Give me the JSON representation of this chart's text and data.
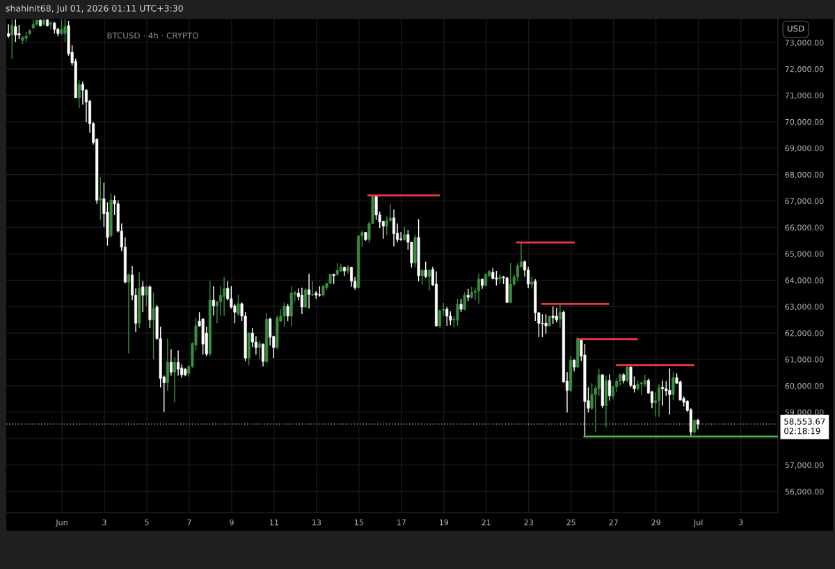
{
  "chart_data": {
    "type": "candlestick",
    "title": "BTCUSD · 4h · CRYPTO",
    "ylabel": "USD",
    "annotations": [
      "shahinit68, Jul 01, 2026 01:11 UTC+3:30"
    ],
    "x": [
      "2026-05-29T11:30",
      "2026-05-29T15:30",
      "2026-05-29T19:30",
      "2026-05-29T23:30",
      "2026-05-30T03:30",
      "2026-05-30T07:30",
      "2026-05-30T11:30",
      "2026-05-30T15:30",
      "2026-05-30T19:30",
      "2026-05-30T23:30",
      "2026-05-31T03:30",
      "2026-05-31T07:30",
      "2026-05-31T11:30",
      "2026-05-31T15:30",
      "2026-05-31T19:30",
      "2026-05-31T23:30",
      "2026-06-01T03:30",
      "2026-06-01T07:30",
      "2026-06-01T11:30",
      "2026-06-01T15:30",
      "2026-06-01T19:30",
      "2026-06-01T23:30",
      "2026-06-02T03:30",
      "2026-06-02T07:30",
      "2026-06-02T11:30",
      "2026-06-02T15:30",
      "2026-06-02T19:30",
      "2026-06-02T23:30",
      "2026-06-03T03:30",
      "2026-06-03T07:30",
      "2026-06-03T11:30",
      "2026-06-03T15:30",
      "2026-06-03T19:30",
      "2026-06-03T23:30",
      "2026-06-04T03:30",
      "2026-06-04T07:30",
      "2026-06-04T11:30",
      "2026-06-04T15:30",
      "2026-06-04T19:30",
      "2026-06-04T23:30",
      "2026-06-05T03:30",
      "2026-06-05T07:30",
      "2026-06-05T11:30",
      "2026-06-05T15:30",
      "2026-06-05T19:30",
      "2026-06-05T23:30",
      "2026-06-06T03:30",
      "2026-06-06T07:30",
      "2026-06-06T11:30",
      "2026-06-06T15:30",
      "2026-06-06T19:30",
      "2026-06-06T23:30",
      "2026-06-07T03:30",
      "2026-06-07T07:30",
      "2026-06-07T11:30",
      "2026-06-07T15:30",
      "2026-06-07T19:30",
      "2026-06-07T23:30",
      "2026-06-08T03:30",
      "2026-06-08T07:30",
      "2026-06-08T11:30",
      "2026-06-08T15:30",
      "2026-06-08T19:30",
      "2026-06-08T23:30",
      "2026-06-09T03:30",
      "2026-06-09T07:30",
      "2026-06-09T11:30",
      "2026-06-09T15:30",
      "2026-06-09T19:30",
      "2026-06-09T23:30",
      "2026-06-10T03:30",
      "2026-06-10T07:30",
      "2026-06-10T11:30",
      "2026-06-10T15:30",
      "2026-06-10T19:30",
      "2026-06-10T23:30",
      "2026-06-11T03:30",
      "2026-06-11T07:30",
      "2026-06-11T11:30",
      "2026-06-11T15:30",
      "2026-06-11T19:30",
      "2026-06-11T23:30",
      "2026-06-12T03:30",
      "2026-06-12T07:30",
      "2026-06-12T11:30",
      "2026-06-12T15:30",
      "2026-06-12T19:30",
      "2026-06-12T23:30",
      "2026-06-13T03:30",
      "2026-06-13T07:30",
      "2026-06-13T11:30",
      "2026-06-13T15:30",
      "2026-06-13T19:30",
      "2026-06-13T23:30",
      "2026-06-14T03:30",
      "2026-06-14T07:30",
      "2026-06-14T11:30",
      "2026-06-14T15:30",
      "2026-06-14T19:30",
      "2026-06-14T23:30",
      "2026-06-15T03:30",
      "2026-06-15T07:30",
      "2026-06-15T11:30",
      "2026-06-15T15:30",
      "2026-06-15T19:30",
      "2026-06-15T23:30",
      "2026-06-16T03:30",
      "2026-06-16T07:30",
      "2026-06-16T11:30",
      "2026-06-16T15:30",
      "2026-06-16T19:30",
      "2026-06-16T23:30",
      "2026-06-17T03:30",
      "2026-06-17T07:30",
      "2026-06-17T11:30",
      "2026-06-17T15:30",
      "2026-06-17T19:30",
      "2026-06-17T23:30",
      "2026-06-18T03:30",
      "2026-06-18T07:30",
      "2026-06-18T11:30",
      "2026-06-18T15:30",
      "2026-06-18T19:30",
      "2026-06-18T23:30",
      "2026-06-19T03:30",
      "2026-06-19T07:30",
      "2026-06-19T11:30",
      "2026-06-19T15:30",
      "2026-06-19T19:30",
      "2026-06-19T23:30",
      "2026-06-20T03:30",
      "2026-06-20T07:30",
      "2026-06-20T11:30",
      "2026-06-20T15:30",
      "2026-06-20T19:30",
      "2026-06-20T23:30",
      "2026-06-21T03:30",
      "2026-06-21T07:30",
      "2026-06-21T11:30",
      "2026-06-21T15:30",
      "2026-06-21T19:30",
      "2026-06-21T23:30",
      "2026-06-22T03:30",
      "2026-06-22T07:30",
      "2026-06-22T11:30",
      "2026-06-22T15:30",
      "2026-06-22T19:30",
      "2026-06-22T23:30",
      "2026-06-23T03:30",
      "2026-06-23T07:30",
      "2026-06-23T11:30",
      "2026-06-23T15:30",
      "2026-06-23T19:30",
      "2026-06-23T23:30",
      "2026-06-24T03:30",
      "2026-06-24T07:30",
      "2026-06-24T11:30",
      "2026-06-24T15:30",
      "2026-06-24T19:30",
      "2026-06-24T23:30",
      "2026-06-25T03:30",
      "2026-06-25T07:30",
      "2026-06-25T11:30",
      "2026-06-25T15:30",
      "2026-06-25T19:30",
      "2026-06-25T23:30",
      "2026-06-26T03:30",
      "2026-06-26T07:30",
      "2026-06-26T11:30",
      "2026-06-26T15:30",
      "2026-06-26T19:30",
      "2026-06-26T23:30",
      "2026-06-27T03:30",
      "2026-06-27T07:30",
      "2026-06-27T11:30",
      "2026-06-27T15:30",
      "2026-06-27T19:30",
      "2026-06-27T23:30",
      "2026-06-28T03:30",
      "2026-06-28T07:30",
      "2026-06-28T11:30",
      "2026-06-28T15:30",
      "2026-06-28T19:30",
      "2026-06-28T23:30",
      "2026-06-29T03:30",
      "2026-06-29T07:30",
      "2026-06-29T11:30",
      "2026-06-29T15:30",
      "2026-06-29T19:30",
      "2026-06-29T23:30",
      "2026-06-30T03:30",
      "2026-06-30T07:30",
      "2026-06-30T11:30",
      "2026-06-30T15:30",
      "2026-06-30T19:30",
      "2026-06-30T23:30"
    ],
    "ohlc": [
      [
        73340,
        73690,
        73190,
        73240
      ],
      [
        73290,
        73880,
        72370,
        73660
      ],
      [
        73610,
        73880,
        73030,
        73290
      ],
      [
        73340,
        73660,
        73130,
        73290
      ],
      [
        73080,
        73240,
        72950,
        73190
      ],
      [
        73160,
        73400,
        73030,
        73240
      ],
      [
        73340,
        73500,
        73290,
        73450
      ],
      [
        73560,
        73880,
        73500,
        73690
      ],
      [
        73690,
        73880,
        73640,
        73850
      ],
      [
        73850,
        73870,
        73610,
        73640
      ],
      [
        73690,
        73880,
        73640,
        73860
      ],
      [
        73860,
        73880,
        73610,
        73640
      ],
      [
        73690,
        73820,
        73500,
        73740
      ],
      [
        73740,
        73790,
        73340,
        73500
      ],
      [
        73500,
        73560,
        73240,
        73340
      ],
      [
        73340,
        73880,
        73290,
        73500
      ],
      [
        73340,
        73880,
        73030,
        73610
      ],
      [
        73640,
        73820,
        72500,
        72580
      ],
      [
        72630,
        72900,
        72130,
        72230
      ],
      [
        72290,
        72390,
        70890,
        70910
      ],
      [
        70910,
        71570,
        70520,
        71410
      ],
      [
        71410,
        71520,
        70650,
        71200
      ],
      [
        71200,
        71230,
        69990,
        70750
      ],
      [
        70780,
        70830,
        69590,
        69930
      ],
      [
        69930,
        69990,
        69140,
        69220
      ],
      [
        69330,
        69380,
        66890,
        67030
      ],
      [
        67030,
        67900,
        66280,
        67100
      ],
      [
        67080,
        67690,
        66020,
        66520
      ],
      [
        66580,
        66950,
        65310,
        65620
      ],
      [
        65680,
        67290,
        65620,
        67030
      ],
      [
        67030,
        67210,
        66470,
        66890
      ],
      [
        66890,
        67030,
        65810,
        65860
      ],
      [
        65860,
        66150,
        65100,
        65250
      ],
      [
        65250,
        65620,
        63880,
        63930
      ],
      [
        63930,
        64250,
        61230,
        64200
      ],
      [
        64200,
        64540,
        63240,
        63430
      ],
      [
        63430,
        63690,
        62030,
        62370
      ],
      [
        62370,
        64300,
        62190,
        63690
      ],
      [
        63750,
        63960,
        62790,
        63430
      ],
      [
        63430,
        63800,
        63030,
        63750
      ],
      [
        63750,
        63800,
        62190,
        62500
      ],
      [
        62500,
        63540,
        61000,
        62930
      ],
      [
        62980,
        63060,
        61740,
        61790
      ],
      [
        61790,
        62240,
        59940,
        60280
      ],
      [
        60340,
        60390,
        59010,
        60120
      ],
      [
        60120,
        61790,
        59810,
        60890
      ],
      [
        60890,
        61390,
        60390,
        60520
      ],
      [
        60520,
        61080,
        59380,
        60890
      ],
      [
        60890,
        61340,
        60390,
        60630
      ],
      [
        60680,
        60810,
        60310,
        60420
      ],
      [
        60630,
        60680,
        60360,
        60420
      ],
      [
        60470,
        60790,
        60340,
        60730
      ],
      [
        60730,
        61650,
        60680,
        61600
      ],
      [
        61550,
        62560,
        61340,
        62270
      ],
      [
        62450,
        62790,
        62240,
        62270
      ],
      [
        62530,
        62560,
        61180,
        61580
      ],
      [
        62000,
        62240,
        61130,
        61210
      ],
      [
        61210,
        63980,
        61130,
        63240
      ],
      [
        63240,
        63770,
        62660,
        63030
      ],
      [
        63030,
        63220,
        62370,
        63190
      ],
      [
        63190,
        63770,
        62660,
        63430
      ],
      [
        63380,
        64120,
        62660,
        63690
      ],
      [
        63690,
        63960,
        63240,
        63300
      ],
      [
        63300,
        63770,
        62930,
        62980
      ],
      [
        63030,
        63110,
        62370,
        62790
      ],
      [
        62710,
        63450,
        62660,
        63110
      ],
      [
        63110,
        63160,
        62450,
        62640
      ],
      [
        62640,
        62790,
        60940,
        61050
      ],
      [
        61050,
        62030,
        60780,
        62000
      ],
      [
        62000,
        62190,
        61470,
        61660
      ],
      [
        61660,
        61870,
        61180,
        61450
      ],
      [
        61450,
        61710,
        61000,
        61600
      ],
      [
        61580,
        61600,
        60730,
        60920
      ],
      [
        60920,
        62770,
        60860,
        62530
      ],
      [
        62530,
        62580,
        61530,
        61840
      ],
      [
        61870,
        61900,
        61050,
        61450
      ],
      [
        61450,
        62660,
        61390,
        62580
      ],
      [
        62450,
        62900,
        62430,
        62640
      ],
      [
        62640,
        63160,
        62240,
        63030
      ],
      [
        63010,
        63110,
        62450,
        62640
      ],
      [
        62640,
        63770,
        62270,
        63510
      ],
      [
        63460,
        63590,
        63190,
        63540
      ],
      [
        63510,
        63690,
        63240,
        63380
      ],
      [
        63430,
        63720,
        62720,
        62980
      ],
      [
        62980,
        63690,
        62950,
        63640
      ],
      [
        63640,
        64250,
        62930,
        63460
      ],
      [
        63430,
        63960,
        63400,
        63460
      ],
      [
        63510,
        63590,
        63300,
        63430
      ],
      [
        63460,
        63770,
        63380,
        63430
      ],
      [
        63430,
        63830,
        63380,
        63770
      ],
      [
        63720,
        63900,
        63640,
        63880
      ],
      [
        63880,
        64250,
        63850,
        64220
      ],
      [
        64220,
        64250,
        63850,
        64170
      ],
      [
        64220,
        64650,
        64170,
        64380
      ],
      [
        64350,
        64620,
        64300,
        64490
      ],
      [
        64490,
        64510,
        64170,
        64350
      ],
      [
        64350,
        64570,
        64250,
        64490
      ],
      [
        64490,
        64510,
        63750,
        63960
      ],
      [
        63960,
        64120,
        63640,
        63720
      ],
      [
        63720,
        65700,
        63700,
        65680
      ],
      [
        65680,
        65890,
        65280,
        65810
      ],
      [
        65810,
        65830,
        65490,
        65540
      ],
      [
        65540,
        66230,
        65410,
        66150
      ],
      [
        66150,
        67180,
        66120,
        67160
      ],
      [
        67160,
        67210,
        66280,
        66470
      ],
      [
        66470,
        66600,
        65980,
        66200
      ],
      [
        66230,
        66260,
        65570,
        66050
      ],
      [
        66050,
        66420,
        65700,
        66260
      ],
      [
        66260,
        66890,
        66200,
        66360
      ],
      [
        66360,
        66680,
        65280,
        65760
      ],
      [
        65780,
        66150,
        65440,
        65540
      ],
      [
        65570,
        65830,
        65490,
        65540
      ],
      [
        65540,
        66020,
        65490,
        65730
      ],
      [
        65730,
        65910,
        65150,
        65440
      ],
      [
        65440,
        65460,
        64480,
        64650
      ],
      [
        64650,
        65730,
        64480,
        65620
      ],
      [
        65620,
        66310,
        63960,
        64170
      ],
      [
        64170,
        64400,
        63830,
        64380
      ],
      [
        64380,
        64700,
        64090,
        64140
      ],
      [
        64140,
        64400,
        63610,
        64380
      ],
      [
        64410,
        64510,
        63770,
        63830
      ],
      [
        63850,
        64330,
        62240,
        62270
      ],
      [
        62270,
        62900,
        62190,
        62850
      ],
      [
        62850,
        63140,
        62640,
        62900
      ],
      [
        62900,
        62980,
        62270,
        62640
      ],
      [
        62640,
        62820,
        62290,
        62480
      ],
      [
        62500,
        62640,
        62210,
        62530
      ],
      [
        62480,
        63300,
        62270,
        63090
      ],
      [
        63090,
        63300,
        62790,
        62900
      ],
      [
        62900,
        63540,
        62870,
        63430
      ],
      [
        63430,
        63670,
        63220,
        63350
      ],
      [
        63350,
        63750,
        63300,
        63540
      ],
      [
        63540,
        63720,
        63240,
        63590
      ],
      [
        63590,
        64250,
        63110,
        64040
      ],
      [
        64040,
        64060,
        63670,
        63800
      ],
      [
        63800,
        64250,
        63750,
        64220
      ],
      [
        64170,
        64380,
        64120,
        64330
      ],
      [
        64300,
        64460,
        64040,
        64060
      ],
      [
        64090,
        64350,
        63800,
        64040
      ],
      [
        64040,
        64220,
        63850,
        64120
      ],
      [
        64120,
        64170,
        63850,
        64090
      ],
      [
        64090,
        64120,
        63140,
        63160
      ],
      [
        63160,
        64650,
        63140,
        63850
      ],
      [
        63850,
        64220,
        63770,
        64120
      ],
      [
        64120,
        64650,
        63960,
        64540
      ],
      [
        64510,
        65460,
        64480,
        64700
      ],
      [
        64700,
        64750,
        64140,
        64380
      ],
      [
        64380,
        64510,
        63690,
        63850
      ],
      [
        63850,
        64140,
        63690,
        63930
      ],
      [
        63960,
        64040,
        62450,
        62770
      ],
      [
        62770,
        62790,
        61840,
        62370
      ],
      [
        62370,
        62710,
        61840,
        62350
      ],
      [
        62370,
        62710,
        61970,
        62270
      ],
      [
        62270,
        62660,
        62240,
        62640
      ],
      [
        62640,
        63010,
        62350,
        62580
      ],
      [
        62640,
        62960,
        62400,
        62500
      ],
      [
        62530,
        63060,
        62210,
        62790
      ],
      [
        62790,
        62850,
        60120,
        60150
      ],
      [
        60180,
        60520,
        58990,
        59830
      ],
      [
        59830,
        61130,
        59750,
        60970
      ],
      [
        60970,
        61000,
        60550,
        60710
      ],
      [
        60710,
        61840,
        60680,
        61790
      ],
      [
        61760,
        61790,
        60940,
        61130
      ],
      [
        61160,
        61580,
        58080,
        59410
      ],
      [
        59440,
        59940,
        58990,
        59150
      ],
      [
        59150,
        60100,
        59090,
        59670
      ],
      [
        59670,
        59990,
        58250,
        59910
      ],
      [
        59890,
        60650,
        59620,
        60420
      ],
      [
        60420,
        60440,
        59150,
        59250
      ],
      [
        59250,
        60390,
        58430,
        60200
      ],
      [
        60200,
        60440,
        59440,
        59620
      ],
      [
        59620,
        60000,
        59490,
        59970
      ],
      [
        59970,
        60280,
        59780,
        60180
      ],
      [
        60180,
        60470,
        60020,
        60420
      ],
      [
        60420,
        60470,
        60100,
        60200
      ],
      [
        60200,
        60810,
        60120,
        60710
      ],
      [
        60710,
        60730,
        59940,
        60020
      ],
      [
        60020,
        60360,
        59750,
        59890
      ],
      [
        59890,
        60200,
        59830,
        60070
      ],
      [
        60070,
        60150,
        59650,
        60120
      ],
      [
        60070,
        60420,
        59970,
        60200
      ],
      [
        60200,
        60280,
        59700,
        59730
      ],
      [
        59780,
        59800,
        59150,
        59360
      ],
      [
        59360,
        59750,
        58830,
        59440
      ],
      [
        59440,
        60070,
        58830,
        59940
      ],
      [
        59940,
        60200,
        59250,
        59890
      ],
      [
        59890,
        60180,
        59620,
        59810
      ],
      [
        59830,
        60650,
        58910,
        59670
      ],
      [
        59670,
        60520,
        59460,
        60310
      ],
      [
        60310,
        60470,
        60080,
        60100
      ],
      [
        60150,
        60200,
        59440,
        59460
      ],
      [
        59520,
        59600,
        59220,
        59380
      ],
      [
        59410,
        59460,
        59010,
        59070
      ],
      [
        59090,
        59150,
        58110,
        58250
      ],
      [
        58250,
        58720,
        58140,
        58700
      ],
      [
        58700,
        58750,
        58360,
        58553.67
      ]
    ],
    "colors": [
      "#ffffff",
      "#3a8f3e",
      "#ffffff",
      "#ffffff",
      "#3a8f3e",
      "#3a8f3e",
      "#3a8f3e",
      "#3a8f3e",
      "#3a8f3e",
      "#ffffff",
      "#3a8f3e",
      "#ffffff",
      "#3a8f3e",
      "#ffffff",
      "#ffffff",
      "#3a8f3e",
      "#3a8f3e",
      "#ffffff",
      "#ffffff",
      "#ffffff",
      "#3a8f3e",
      "#ffffff",
      "#ffffff",
      "#ffffff",
      "#ffffff",
      "#ffffff",
      "#3a8f3e",
      "#ffffff",
      "#ffffff",
      "#3a8f3e",
      "#ffffff",
      "#ffffff",
      "#ffffff",
      "#ffffff",
      "#3a8f3e",
      "#ffffff",
      "#ffffff",
      "#3a8f3e",
      "#ffffff",
      "#3a8f3e",
      "#ffffff",
      "#3a8f3e",
      "#ffffff",
      "#ffffff",
      "#ffffff",
      "#3a8f3e",
      "#ffffff",
      "#3a8f3e",
      "#ffffff",
      "#ffffff",
      "#ffffff",
      "#3a8f3e",
      "#3a8f3e",
      "#3a8f3e",
      "#ffffff",
      "#ffffff",
      "#ffffff",
      "#3a8f3e",
      "#ffffff",
      "#3a8f3e",
      "#3a8f3e",
      "#3a8f3e",
      "#ffffff",
      "#ffffff",
      "#ffffff",
      "#3a8f3e",
      "#ffffff",
      "#ffffff",
      "#3a8f3e",
      "#ffffff",
      "#ffffff",
      "#3a8f3e",
      "#ffffff",
      "#3a8f3e",
      "#ffffff",
      "#ffffff",
      "#3a8f3e",
      "#3a8f3e",
      "#3a8f3e",
      "#ffffff",
      "#3a8f3e",
      "#3a8f3e",
      "#ffffff",
      "#ffffff",
      "#3a8f3e",
      "#ffffff",
      "#3a8f3e",
      "#ffffff",
      "#ffffff",
      "#3a8f3e",
      "#3a8f3e",
      "#3a8f3e",
      "#ffffff",
      "#3a8f3e",
      "#3a8f3e",
      "#ffffff",
      "#3a8f3e",
      "#ffffff",
      "#ffffff",
      "#3a8f3e",
      "#3a8f3e",
      "#ffffff",
      "#3a8f3e",
      "#3a8f3e",
      "#ffffff",
      "#ffffff",
      "#ffffff",
      "#3a8f3e",
      "#3a8f3e",
      "#ffffff",
      "#ffffff",
      "#ffffff",
      "#3a8f3e",
      "#ffffff",
      "#ffffff",
      "#3a8f3e",
      "#ffffff",
      "#3a8f3e",
      "#ffffff",
      "#3a8f3e",
      "#ffffff",
      "#ffffff",
      "#3a8f3e",
      "#3a8f3e",
      "#ffffff",
      "#ffffff",
      "#3a8f3e",
      "#3a8f3e",
      "#ffffff",
      "#3a8f3e",
      "#ffffff",
      "#3a8f3e",
      "#3a8f3e",
      "#3a8f3e",
      "#ffffff",
      "#3a8f3e",
      "#3a8f3e",
      "#ffffff",
      "#ffffff",
      "#3a8f3e",
      "#ffffff",
      "#ffffff",
      "#3a8f3e",
      "#3a8f3e",
      "#3a8f3e",
      "#3a8f3e",
      "#ffffff",
      "#ffffff",
      "#3a8f3e",
      "#ffffff",
      "#ffffff",
      "#ffffff",
      "#ffffff",
      "#3a8f3e",
      "#ffffff",
      "#ffffff",
      "#3a8f3e",
      "#ffffff",
      "#ffffff",
      "#3a8f3e",
      "#ffffff",
      "#3a8f3e",
      "#ffffff",
      "#ffffff",
      "#ffffff",
      "#3a8f3e",
      "#3a8f3e",
      "#3a8f3e",
      "#ffffff",
      "#3a8f3e",
      "#ffffff",
      "#3a8f3e",
      "#3a8f3e",
      "#3a8f3e",
      "#ffffff",
      "#3a8f3e",
      "#ffffff",
      "#ffffff",
      "#3a8f3e",
      "#3a8f3e",
      "#3a8f3e",
      "#ffffff",
      "#ffffff",
      "#3a8f3e",
      "#3a8f3e",
      "#ffffff",
      "#ffffff",
      "#ffffff",
      "#3a8f3e",
      "#ffffff",
      "#ffffff",
      "#ffffff",
      "#ffffff",
      "#ffffff",
      "#3a8f3e",
      "#ffffff"
    ],
    "series": [
      {
        "type": "line",
        "color": "#f23645",
        "x": [
          "2026-06-15T09:30",
          "2026-06-18T19:30"
        ],
        "values": [
          67210,
          67210
        ]
      },
      {
        "type": "line",
        "color": "#f23645",
        "x": [
          "2026-06-22T10:00",
          "2026-06-25T04:00"
        ],
        "values": [
          65430,
          65430
        ]
      },
      {
        "type": "line",
        "color": "#f23645",
        "x": [
          "2026-06-23T14:00",
          "2026-06-26T19:00"
        ],
        "values": [
          63100,
          63100
        ]
      },
      {
        "type": "line",
        "color": "#f23645",
        "x": [
          "2026-06-25T08:00",
          "2026-06-28T03:30"
        ],
        "values": [
          61770,
          61770
        ]
      },
      {
        "type": "line",
        "color": "#f23645",
        "x": [
          "2026-06-27T02:30",
          "2026-06-30T19:30"
        ],
        "values": [
          60780,
          60780
        ]
      },
      {
        "type": "line",
        "color": "#4caf50",
        "x": [
          "2026-06-25T14:00",
          "2026-07-04T18:00"
        ],
        "values": [
          58080,
          58080
        ]
      }
    ],
    "ref_lines": [
      {
        "axis": "y",
        "value": 58553.67,
        "label": "58,553.67\n02:18:19",
        "color": "#c8c8c8",
        "line_style": "dotted"
      }
    ],
    "xlim": [
      "2026-05-29T09:00",
      "2026-07-04T18:00"
    ],
    "ylim": [
      55200,
      73900
    ],
    "xticks": [
      {
        "value": "2026-06-01",
        "label": "Jun"
      },
      {
        "value": "2026-06-03",
        "label": "3"
      },
      {
        "value": "2026-06-05",
        "label": "5"
      },
      {
        "value": "2026-06-07",
        "label": "7"
      },
      {
        "value": "2026-06-09",
        "label": "9"
      },
      {
        "value": "2026-06-11",
        "label": "11"
      },
      {
        "value": "2026-06-13",
        "label": "13"
      },
      {
        "value": "2026-06-15",
        "label": "15"
      },
      {
        "value": "2026-06-17",
        "label": "17"
      },
      {
        "value": "2026-06-19",
        "label": "19"
      },
      {
        "value": "2026-06-21",
        "label": "21"
      },
      {
        "value": "2026-06-23",
        "label": "23"
      },
      {
        "value": "2026-06-25",
        "label": "25"
      },
      {
        "value": "2026-06-27",
        "label": "27"
      },
      {
        "value": "2026-06-29",
        "label": "29"
      },
      {
        "value": "2026-07-01",
        "label": "Jul"
      },
      {
        "value": "2026-07-03",
        "label": "3"
      }
    ],
    "yticks": [
      {
        "value": 56000,
        "label": "56,000.00"
      },
      {
        "value": 57000,
        "label": "57,000.00"
      },
      {
        "value": 58000,
        "label": null
      },
      {
        "value": 59000,
        "label": "59,000.00"
      },
      {
        "value": 60000,
        "label": "60,000.00"
      },
      {
        "value": 61000,
        "label": "61,000.00"
      },
      {
        "value": 62000,
        "label": "62,000.00"
      },
      {
        "value": 63000,
        "label": "63,000.00"
      },
      {
        "value": 64000,
        "label": "64,000.00"
      },
      {
        "value": 65000,
        "label": "65,000.00"
      },
      {
        "value": 66000,
        "label": "66,000.00"
      },
      {
        "value": 67000,
        "label": "67,000.00"
      },
      {
        "value": 68000,
        "label": "68,000.00"
      },
      {
        "value": 69000,
        "label": "69,000.00"
      },
      {
        "value": 70000,
        "label": "70,000.00"
      },
      {
        "value": 71000,
        "label": "71,000.00"
      },
      {
        "value": 72000,
        "label": "72,000.00"
      },
      {
        "value": 73000,
        "label": "73,000.00"
      }
    ],
    "grid": true
  }
}
